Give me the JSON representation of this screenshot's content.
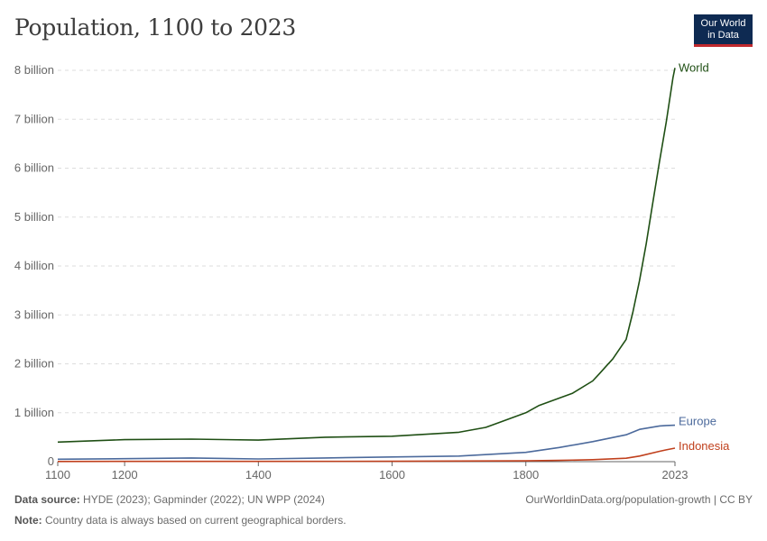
{
  "title": "Population, 1100 to 2023",
  "logo": {
    "line1": "Our World",
    "line2": "in Data"
  },
  "footer": {
    "source_label": "Data source:",
    "source_text": "HYDE (2023); Gapminder (2022); UN WPP (2024)",
    "link": "OurWorldinData.org/population-growth | CC BY",
    "note_label": "Note:",
    "note_text": "Country data is always based on current geographical borders."
  },
  "colors": {
    "World": "#1f4f14",
    "Europe": "#4c6a9c",
    "Indonesia": "#c0401d",
    "grid": "#dddddd",
    "axis": "#666666"
  },
  "chart_data": {
    "type": "line",
    "title": "Population, 1100 to 2023",
    "xlim": [
      1100,
      2023
    ],
    "ylim": [
      0,
      8000000000
    ],
    "x_ticks": [
      {
        "value": 1100,
        "label": "1100"
      },
      {
        "value": 1200,
        "label": "1200"
      },
      {
        "value": 1400,
        "label": "1400"
      },
      {
        "value": 1600,
        "label": "1600"
      },
      {
        "value": 1800,
        "label": "1800"
      },
      {
        "value": 2023,
        "label": "2023"
      }
    ],
    "y_ticks": [
      {
        "value": 0,
        "label": "0"
      },
      {
        "value": 1000000000,
        "label": "1 billion"
      },
      {
        "value": 2000000000,
        "label": "2 billion"
      },
      {
        "value": 3000000000,
        "label": "3 billion"
      },
      {
        "value": 4000000000,
        "label": "4 billion"
      },
      {
        "value": 5000000000,
        "label": "5 billion"
      },
      {
        "value": 6000000000,
        "label": "6 billion"
      },
      {
        "value": 7000000000,
        "label": "7 billion"
      },
      {
        "value": 8000000000,
        "label": "8 billion"
      }
    ],
    "grid": true,
    "series": [
      {
        "name": "World",
        "x": [
          1100,
          1200,
          1300,
          1400,
          1500,
          1600,
          1700,
          1740,
          1760,
          1800,
          1820,
          1850,
          1870,
          1900,
          1910,
          1920,
          1930,
          1940,
          1950,
          1960,
          1970,
          1980,
          1990,
          2000,
          2010,
          2020,
          2023
        ],
        "y": [
          400000000,
          450000000,
          460000000,
          440000000,
          500000000,
          520000000,
          600000000,
          700000000,
          800000000,
          1000000000,
          1150000000,
          1300000000,
          1400000000,
          1650000000,
          1800000000,
          1950000000,
          2100000000,
          2300000000,
          2500000000,
          3050000000,
          3700000000,
          4450000000,
          5300000000,
          6150000000,
          6950000000,
          7850000000,
          8050000000
        ]
      },
      {
        "name": "Europe",
        "x": [
          1100,
          1200,
          1300,
          1400,
          1500,
          1600,
          1700,
          1800,
          1850,
          1900,
          1950,
          1970,
          2000,
          2010,
          2023
        ],
        "y": [
          50000000,
          60000000,
          75000000,
          55000000,
          75000000,
          95000000,
          115000000,
          190000000,
          290000000,
          410000000,
          550000000,
          660000000,
          730000000,
          740000000,
          745000000
        ]
      },
      {
        "name": "Indonesia",
        "x": [
          1100,
          1200,
          1400,
          1600,
          1800,
          1850,
          1900,
          1950,
          1970,
          2000,
          2010,
          2023
        ],
        "y": [
          4000000,
          5000000,
          6000000,
          8000000,
          16000000,
          25000000,
          40000000,
          70000000,
          115000000,
          212000000,
          242000000,
          277000000
        ]
      }
    ]
  }
}
